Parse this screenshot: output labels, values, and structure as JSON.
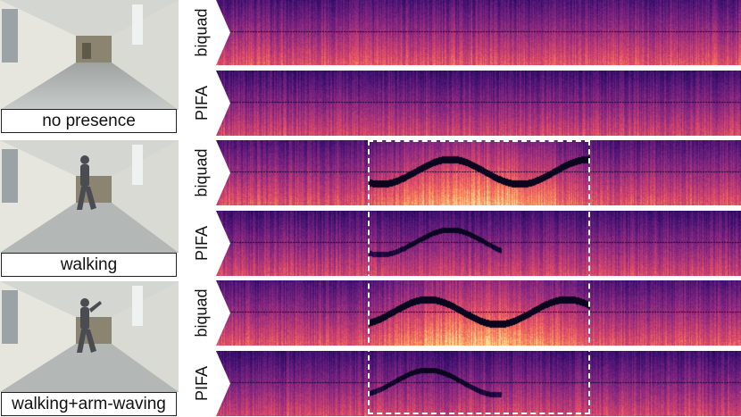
{
  "rows": [
    {
      "caption": "no presence",
      "spectrograms": [
        {
          "label": "biquad",
          "activity": false
        },
        {
          "label": "PIFA",
          "activity": false
        }
      ]
    },
    {
      "caption": "walking",
      "spectrograms": [
        {
          "label": "biquad",
          "activity": true
        },
        {
          "label": "PIFA",
          "activity": true
        }
      ]
    },
    {
      "caption": "walking+arm-waving",
      "spectrograms": [
        {
          "label": "biquad",
          "activity": true
        },
        {
          "label": "PIFA",
          "activity": true
        }
      ]
    }
  ],
  "colors": {
    "spectrogram_dark": "#1a0b3a",
    "spectrogram_mid": "#7a2a8e",
    "spectrogram_bright": "#f7a45a",
    "highlight_box": "#ffffff"
  },
  "icons": {
    "person": "person-icon",
    "doorway": "corridor-door-icon"
  }
}
